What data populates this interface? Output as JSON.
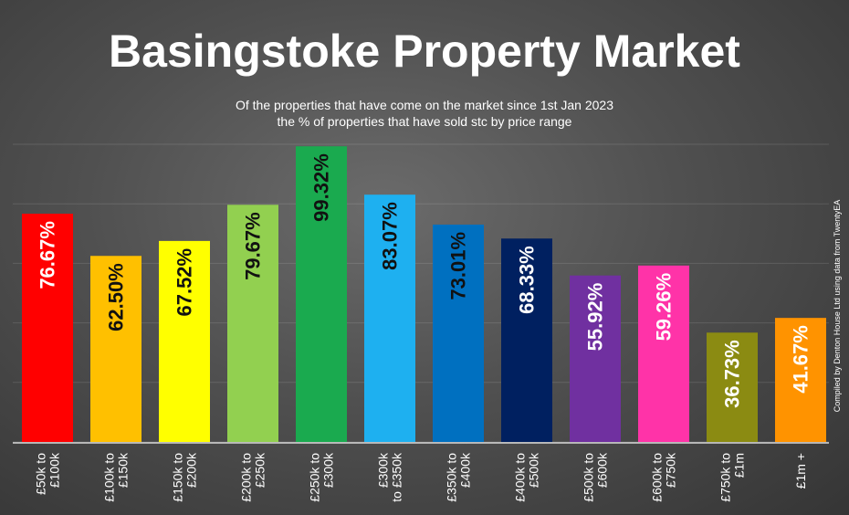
{
  "chart_data": {
    "type": "bar",
    "title": "Basingstoke Property Market",
    "subtitle_line1": "Of the properties that have come on the market since 1st Jan 2023",
    "subtitle_line2": "the % of properties that have sold stc by price range",
    "credit": "Compiled by Denton House Ltd using data from TwentyEA",
    "ylim": [
      0,
      100
    ],
    "grid": true,
    "categories": [
      [
        "£50k to",
        "£100k"
      ],
      [
        "£100k to",
        "£150k"
      ],
      [
        "£150k to",
        "£200k"
      ],
      [
        "£200k to",
        "£250k"
      ],
      [
        "£250k to",
        "£300k"
      ],
      [
        "£300k",
        "to £350k"
      ],
      [
        "£350k to",
        "£400k"
      ],
      [
        "£400k to",
        "£500k"
      ],
      [
        "£500k to",
        "£600k"
      ],
      [
        "£600k to",
        "£750k"
      ],
      [
        "£750k to",
        "£1m"
      ],
      [
        "£1m +"
      ]
    ],
    "values": [
      76.67,
      62.5,
      67.52,
      79.67,
      99.32,
      83.07,
      73.01,
      68.33,
      55.92,
      59.26,
      36.73,
      41.67
    ],
    "data_labels": [
      "76.67%",
      "62.50%",
      "67.52%",
      "79.67%",
      "99.32%",
      "83.07%",
      "73.01%",
      "68.33%",
      "55.92%",
      "59.26%",
      "36.73%",
      "41.67%"
    ],
    "bar_colors": [
      "#ff0000",
      "#ffc000",
      "#ffff00",
      "#92d050",
      "#1aaa4f",
      "#1eb0f0",
      "#0070c0",
      "#002060",
      "#7030a0",
      "#ff33a8",
      "#8b8b12",
      "#ff9300"
    ],
    "label_colors": [
      "#ffffff",
      "#111111",
      "#111111",
      "#111111",
      "#111111",
      "#111111",
      "#111111",
      "#ffffff",
      "#ffffff",
      "#ffffff",
      "#ffffff",
      "#ffffff"
    ]
  }
}
